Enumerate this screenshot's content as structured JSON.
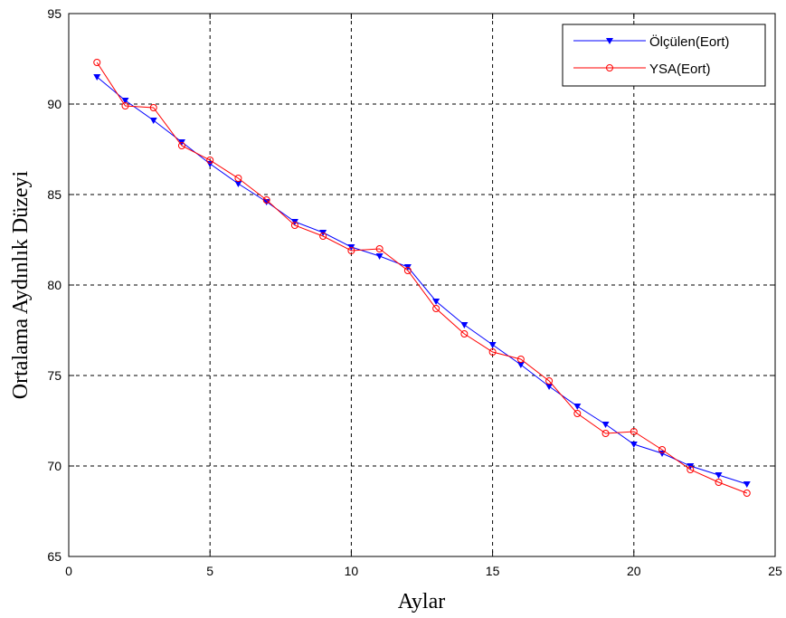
{
  "chart_data": {
    "type": "line",
    "title": "",
    "xlabel": "Aylar",
    "ylabel": "Ortalama Aydınlık Düzeyi",
    "xlim": [
      0,
      25
    ],
    "ylim": [
      65,
      95
    ],
    "xticks": [
      0,
      5,
      10,
      15,
      20,
      25
    ],
    "yticks": [
      65,
      70,
      75,
      80,
      85,
      90,
      95
    ],
    "grid": true,
    "legend_position": "top-right",
    "x": [
      1,
      2,
      3,
      4,
      5,
      6,
      7,
      8,
      9,
      10,
      11,
      12,
      13,
      14,
      15,
      16,
      17,
      18,
      19,
      20,
      21,
      22,
      23,
      24
    ],
    "series": [
      {
        "name": "Ölçülen(Eort)",
        "color": "#0000ff",
        "marker": "triangle-down",
        "values": [
          91.5,
          90.2,
          89.1,
          87.9,
          86.7,
          85.6,
          84.6,
          83.5,
          82.9,
          82.1,
          81.6,
          81.0,
          79.1,
          77.8,
          76.7,
          75.6,
          74.4,
          73.3,
          72.3,
          71.2,
          70.7,
          70.0,
          69.5,
          69.0
        ]
      },
      {
        "name": "YSA(Eort)",
        "color": "#ff0000",
        "marker": "circle",
        "values": [
          92.3,
          89.9,
          89.8,
          87.7,
          86.9,
          85.9,
          84.7,
          83.3,
          82.7,
          81.9,
          82.0,
          80.8,
          78.7,
          77.3,
          76.3,
          75.9,
          74.7,
          72.9,
          71.8,
          71.9,
          70.9,
          69.8,
          69.1,
          68.5
        ]
      }
    ]
  }
}
